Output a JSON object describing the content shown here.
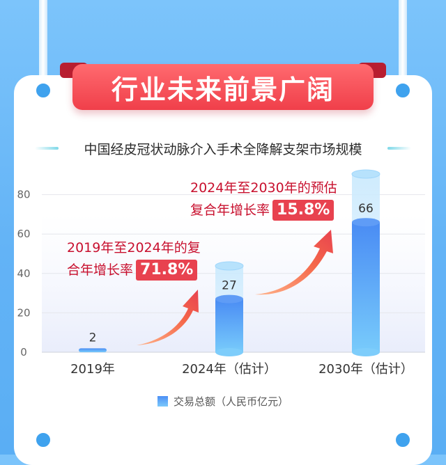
{
  "banner": {
    "title": "行业未来前景广阔"
  },
  "chart_data": {
    "type": "bar",
    "title": "中国经皮冠状动脉介入手术全降解支架市场规模",
    "categories": [
      "2019年",
      "2024年（估计）",
      "2030年（估计）"
    ],
    "series": [
      {
        "name": "交易总额（人民币亿元）",
        "values": [
          2,
          27,
          66
        ]
      }
    ],
    "ylim": [
      0,
      90
    ],
    "yticks": [
      0,
      20,
      40,
      60,
      80
    ],
    "grid": true,
    "legend_position": "bottom"
  },
  "callouts": [
    {
      "line1": "2019年至2024年的复",
      "line2": "合年增长率",
      "value": "71.8%"
    },
    {
      "line1": "2024年至2030年的预估",
      "line2": "复合年增长率",
      "value": "15.8%"
    }
  ],
  "colors": {
    "accent": "#e8424f",
    "bar": "#4c8ff5",
    "callout_text": "#c8102e"
  }
}
